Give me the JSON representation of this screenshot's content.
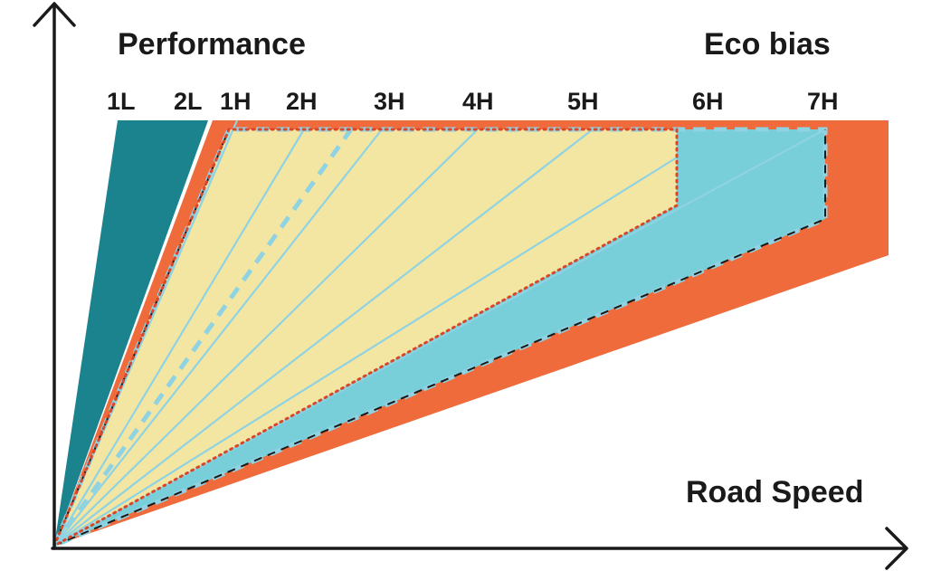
{
  "labels": {
    "performance": "Performance",
    "eco_bias": "Eco bias",
    "road_speed": "Road Speed"
  },
  "gears": [
    "1L",
    "2L",
    "1H",
    "2H",
    "3H",
    "4H",
    "5H",
    "6H",
    "7H"
  ],
  "colors": {
    "background": "#ffffff",
    "axis": "#1a1a1a",
    "low_range": "#1b838e",
    "full_range": "#f06b3c",
    "eco_range": "#78cfd9",
    "performance_range": "#f3e6a3",
    "gear_lines": "#8fd3e3",
    "dotted_border": "#d9472b",
    "dashed_border": "#8fd3e3"
  }
}
